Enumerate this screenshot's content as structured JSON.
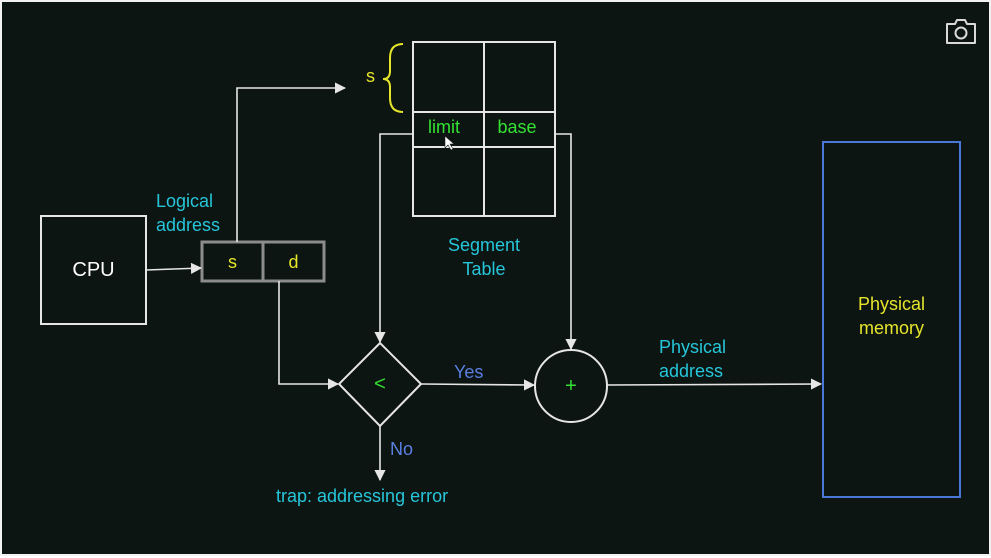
{
  "icons": {
    "camera": "camera-icon"
  },
  "cpu": {
    "label": "CPU"
  },
  "logical_address": {
    "label_line1": "Logical",
    "label_line2": "address",
    "s": "s",
    "d": "d"
  },
  "segment_table": {
    "brace_label": "s",
    "limit": "limit",
    "base": "base",
    "caption_line1": "Segment",
    "caption_line2": "Table"
  },
  "comparator": {
    "symbol": "<",
    "yes": "Yes",
    "no": "No"
  },
  "adder": {
    "symbol": "+"
  },
  "physical_address": {
    "line1": "Physical",
    "line2": "address"
  },
  "physical_memory": {
    "line1": "Physical",
    "line2": "memory"
  },
  "trap": {
    "label": "trap: addressing error"
  },
  "colors": {
    "background": "#0d1512",
    "cyan_text": "#26c6da",
    "green_text": "#33e233",
    "yellow_text": "#e5e52a",
    "blue_text": "#5a7fe0",
    "memory_border": "#4a78d8",
    "lines": "#e6e6e6"
  }
}
